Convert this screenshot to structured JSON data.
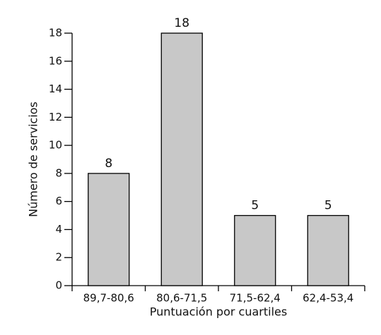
{
  "chart_data": {
    "type": "bar",
    "x_label": "Puntuación por cuartiles",
    "y_label": "Número de servicios",
    "categories": [
      "89,7-80,6",
      "80,6-71,5",
      "71,5-62,4",
      "62,4-53,4"
    ],
    "values": [
      8,
      18,
      5,
      5
    ],
    "color": "#c8c8c8",
    "ylim": [
      0,
      18
    ],
    "yticks": [
      0,
      2,
      4,
      6,
      8,
      10,
      12,
      14,
      16,
      18
    ],
    "grid": false
  }
}
